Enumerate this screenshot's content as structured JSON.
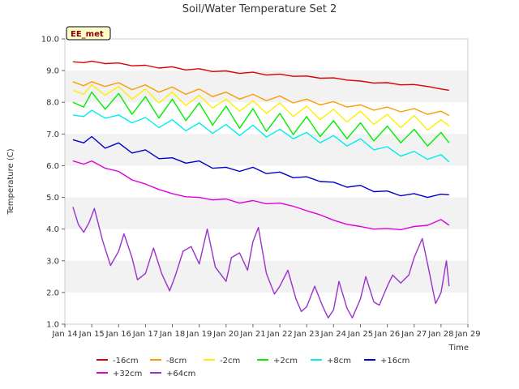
{
  "chart_data": {
    "type": "line",
    "title": "Soil/Water Temperature Set 2",
    "xlabel": "Time",
    "ylabel": "Temperature (C)",
    "badge": "EE_met",
    "ylim": [
      1.0,
      10.0
    ],
    "yticks": [
      "1.0",
      "2.0",
      "3.0",
      "4.0",
      "5.0",
      "6.0",
      "7.0",
      "8.0",
      "9.0",
      "10.0"
    ],
    "xlim": [
      14,
      29
    ],
    "xticks": [
      "Jan 14",
      "Jan 15",
      "Jan 16",
      "Jan 17",
      "Jan 18",
      "Jan 19",
      "Jan 20",
      "Jan 21",
      "Jan 22",
      "Jan 23",
      "Jan 24",
      "Jan 25",
      "Jan 26",
      "Jan 27",
      "Jan 28",
      "Jan 29"
    ],
    "grid": "alternating horizontal bands",
    "legend_placement": "bottom",
    "series": [
      {
        "name": "-16cm",
        "color": "#dd0000",
        "x": [
          14.3,
          14.7,
          15.0,
          15.5,
          16.0,
          16.5,
          17.0,
          17.5,
          18.0,
          18.5,
          19.0,
          19.5,
          20.0,
          20.5,
          21.0,
          21.5,
          22.0,
          22.5,
          23.0,
          23.5,
          24.0,
          24.5,
          25.0,
          25.5,
          26.0,
          26.5,
          27.0,
          27.5,
          28.0,
          28.3
        ],
        "y": [
          9.28,
          9.25,
          9.3,
          9.22,
          9.24,
          9.15,
          9.17,
          9.08,
          9.12,
          9.02,
          9.06,
          8.97,
          8.99,
          8.91,
          8.95,
          8.86,
          8.89,
          8.82,
          8.83,
          8.76,
          8.77,
          8.7,
          8.67,
          8.61,
          8.62,
          8.55,
          8.56,
          8.5,
          8.42,
          8.38
        ]
      },
      {
        "name": "-8cm",
        "color": "#ff9900",
        "x": [
          14.3,
          14.7,
          15.0,
          15.5,
          16.0,
          16.5,
          17.0,
          17.5,
          18.0,
          18.5,
          19.0,
          19.5,
          20.0,
          20.5,
          21.0,
          21.5,
          22.0,
          22.5,
          23.0,
          23.5,
          24.0,
          24.5,
          25.0,
          25.5,
          26.0,
          26.5,
          27.0,
          27.5,
          28.0,
          28.3
        ],
        "y": [
          8.65,
          8.52,
          8.65,
          8.5,
          8.62,
          8.4,
          8.55,
          8.32,
          8.48,
          8.25,
          8.42,
          8.18,
          8.32,
          8.1,
          8.25,
          8.05,
          8.2,
          7.98,
          8.1,
          7.92,
          8.02,
          7.85,
          7.92,
          7.75,
          7.85,
          7.7,
          7.8,
          7.62,
          7.72,
          7.58
        ]
      },
      {
        "name": "-2cm",
        "color": "#ffee00",
        "x": [
          14.3,
          14.7,
          15.0,
          15.5,
          16.0,
          16.5,
          17.0,
          17.5,
          18.0,
          18.5,
          19.0,
          19.5,
          20.0,
          20.5,
          21.0,
          21.5,
          22.0,
          22.5,
          23.0,
          23.5,
          24.0,
          24.5,
          25.0,
          25.5,
          26.0,
          26.5,
          27.0,
          27.5,
          28.0,
          28.3
        ],
        "y": [
          8.38,
          8.25,
          8.55,
          8.22,
          8.5,
          8.1,
          8.42,
          7.98,
          8.32,
          7.9,
          8.22,
          7.82,
          8.1,
          7.72,
          8.05,
          7.65,
          7.98,
          7.55,
          7.88,
          7.45,
          7.78,
          7.38,
          7.72,
          7.3,
          7.62,
          7.2,
          7.58,
          7.12,
          7.45,
          7.25
        ]
      },
      {
        "name": "+2cm",
        "color": "#00ee00",
        "x": [
          14.3,
          14.7,
          15.0,
          15.5,
          16.0,
          16.5,
          17.0,
          17.5,
          18.0,
          18.5,
          19.0,
          19.5,
          20.0,
          20.5,
          21.0,
          21.5,
          22.0,
          22.5,
          23.0,
          23.5,
          24.0,
          24.5,
          25.0,
          25.5,
          26.0,
          26.5,
          27.0,
          27.5,
          28.0,
          28.3
        ],
        "y": [
          8.0,
          7.85,
          8.32,
          7.78,
          8.28,
          7.62,
          8.18,
          7.5,
          8.1,
          7.42,
          7.98,
          7.28,
          7.88,
          7.18,
          7.8,
          7.08,
          7.65,
          6.98,
          7.55,
          6.92,
          7.42,
          6.85,
          7.35,
          6.78,
          7.25,
          6.72,
          7.15,
          6.62,
          7.05,
          6.72
        ]
      },
      {
        "name": "+8cm",
        "color": "#00eeee",
        "x": [
          14.3,
          14.7,
          15.0,
          15.5,
          16.0,
          16.5,
          17.0,
          17.5,
          18.0,
          18.5,
          19.0,
          19.5,
          20.0,
          20.5,
          21.0,
          21.5,
          22.0,
          22.5,
          23.0,
          23.5,
          24.0,
          24.5,
          25.0,
          25.5,
          26.0,
          26.5,
          27.0,
          27.5,
          28.0,
          28.3
        ],
        "y": [
          7.6,
          7.55,
          7.75,
          7.5,
          7.6,
          7.35,
          7.52,
          7.2,
          7.45,
          7.1,
          7.35,
          7.02,
          7.3,
          6.95,
          7.28,
          6.9,
          7.15,
          6.85,
          7.05,
          6.72,
          6.95,
          6.62,
          6.85,
          6.5,
          6.6,
          6.3,
          6.45,
          6.2,
          6.35,
          6.12
        ]
      },
      {
        "name": "+16cm",
        "color": "#0000cc",
        "x": [
          14.3,
          14.7,
          15.0,
          15.5,
          16.0,
          16.5,
          17.0,
          17.5,
          18.0,
          18.5,
          19.0,
          19.5,
          20.0,
          20.5,
          21.0,
          21.5,
          22.0,
          22.5,
          23.0,
          23.5,
          24.0,
          24.5,
          25.0,
          25.5,
          26.0,
          26.5,
          27.0,
          27.5,
          28.0,
          28.3
        ],
        "y": [
          6.82,
          6.72,
          6.92,
          6.55,
          6.72,
          6.4,
          6.5,
          6.22,
          6.25,
          6.08,
          6.15,
          5.92,
          5.95,
          5.82,
          5.95,
          5.75,
          5.8,
          5.62,
          5.65,
          5.5,
          5.48,
          5.32,
          5.38,
          5.18,
          5.2,
          5.05,
          5.12,
          5.0,
          5.1,
          5.08
        ]
      },
      {
        "name": "+32cm",
        "color": "#dd00dd",
        "x": [
          14.3,
          14.7,
          15.0,
          15.5,
          16.0,
          16.5,
          17.0,
          17.5,
          18.0,
          18.5,
          19.0,
          19.5,
          20.0,
          20.5,
          21.0,
          21.5,
          22.0,
          22.5,
          23.0,
          23.5,
          24.0,
          24.5,
          25.0,
          25.5,
          26.0,
          26.5,
          27.0,
          27.5,
          28.0,
          28.3
        ],
        "y": [
          6.15,
          6.05,
          6.15,
          5.92,
          5.82,
          5.55,
          5.42,
          5.25,
          5.12,
          5.02,
          5.0,
          4.92,
          4.95,
          4.82,
          4.9,
          4.8,
          4.82,
          4.72,
          4.58,
          4.45,
          4.28,
          4.15,
          4.08,
          4.0,
          4.02,
          3.98,
          4.08,
          4.12,
          4.3,
          4.12
        ]
      },
      {
        "name": "+64cm",
        "color": "#9933cc",
        "x": [
          14.3,
          14.5,
          14.7,
          14.9,
          15.1,
          15.4,
          15.7,
          16.0,
          16.2,
          16.5,
          16.7,
          17.0,
          17.3,
          17.6,
          17.9,
          18.1,
          18.4,
          18.7,
          19.0,
          19.3,
          19.6,
          20.0,
          20.2,
          20.5,
          20.8,
          21.0,
          21.2,
          21.5,
          21.8,
          22.0,
          22.3,
          22.6,
          22.8,
          23.0,
          23.3,
          23.6,
          23.8,
          24.0,
          24.2,
          24.5,
          24.7,
          25.0,
          25.2,
          25.5,
          25.7,
          26.0,
          26.2,
          26.5,
          26.8,
          27.0,
          27.3,
          27.5,
          27.8,
          28.0,
          28.2,
          28.3
        ],
        "y": [
          4.7,
          4.15,
          3.9,
          4.2,
          4.65,
          3.65,
          2.85,
          3.3,
          3.85,
          3.1,
          2.4,
          2.6,
          3.4,
          2.6,
          2.05,
          2.5,
          3.3,
          3.45,
          2.9,
          4.0,
          2.8,
          2.35,
          3.1,
          3.25,
          2.7,
          3.6,
          4.05,
          2.6,
          1.95,
          2.2,
          2.7,
          1.8,
          1.4,
          1.55,
          2.2,
          1.55,
          1.2,
          1.45,
          2.35,
          1.5,
          1.2,
          1.8,
          2.5,
          1.7,
          1.6,
          2.2,
          2.55,
          2.3,
          2.55,
          3.1,
          3.7,
          2.9,
          1.65,
          2.0,
          3.0,
          2.2
        ]
      }
    ]
  }
}
